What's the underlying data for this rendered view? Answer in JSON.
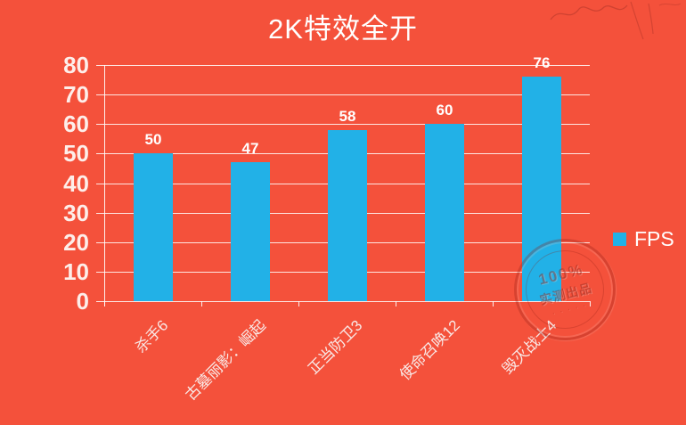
{
  "title": "2K特效全开",
  "legend": {
    "label": "FPS"
  },
  "colors": {
    "background": "#f4513b",
    "bar": "#22b1e7",
    "grid": "#ffffff",
    "text": "#ffffff"
  },
  "chart_data": {
    "type": "bar",
    "title": "2K特效全开",
    "categories": [
      "杀手6",
      "古墓丽影：崛起",
      "正当防卫3",
      "使命召唤12",
      "毁灭战士4"
    ],
    "values": [
      50,
      47,
      58,
      60,
      76
    ],
    "series_name": "FPS",
    "xlabel": "",
    "ylabel": "",
    "ylim": [
      0,
      80
    ],
    "yticks": [
      0,
      10,
      20,
      30,
      40,
      50,
      60,
      70,
      80
    ],
    "grid": true,
    "data_labels": true,
    "legend_position": "right",
    "bar_color": "#22b1e7",
    "background_color": "#f4513b"
  },
  "watermark": {
    "stamp_line1": "100%",
    "stamp_line2": "实测出品"
  }
}
